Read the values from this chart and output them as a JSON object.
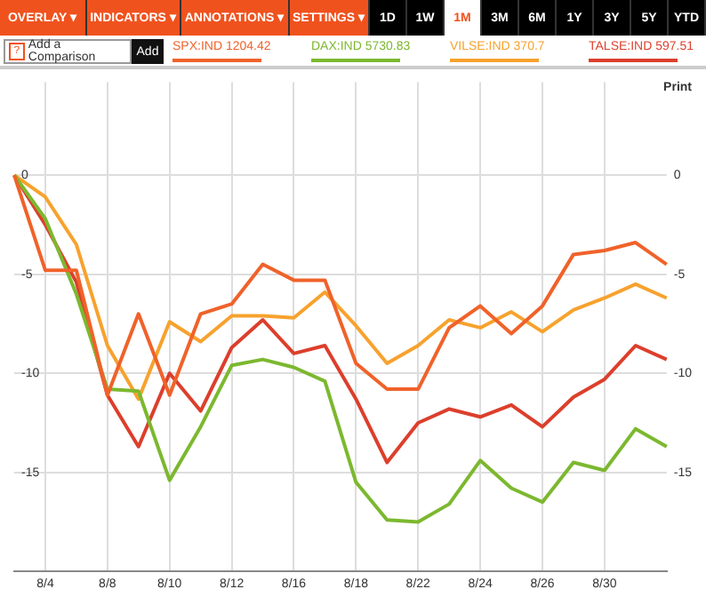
{
  "chart_data": {
    "type": "line",
    "categories": [
      null,
      "8/4",
      null,
      "8/8",
      null,
      "8/10",
      null,
      "8/12",
      null,
      "8/16",
      null,
      "8/18",
      null,
      "8/22",
      null,
      "8/24",
      null,
      "8/26",
      null,
      "8/30",
      null,
      null
    ],
    "series": [
      {
        "name": "SPX:IND 1204.42",
        "color": "#f0622a",
        "values": [
          0,
          -4.8,
          -4.8,
          -11.1,
          -7.0,
          -11.1,
          -7.0,
          -6.5,
          -4.5,
          -5.3,
          -5.3,
          -9.5,
          -10.8,
          -10.8,
          -7.7,
          -6.6,
          -8.0,
          -6.6,
          -4.0,
          -3.8,
          -3.4,
          -4.5
        ]
      },
      {
        "name": "DAX:IND 5730.83",
        "color": "#7cb82f",
        "values": [
          0,
          -2.2,
          -6.0,
          -10.8,
          -10.9,
          -15.4,
          -12.7,
          -9.6,
          -9.3,
          -9.7,
          -10.4,
          -15.5,
          -17.4,
          -17.5,
          -16.6,
          -14.4,
          -15.8,
          -16.5,
          -14.5,
          -14.9,
          -12.8,
          -13.7
        ]
      },
      {
        "name": "VILSE:IND 370.7",
        "color": "#f7a22e",
        "values": [
          0,
          -1.1,
          -3.5,
          -8.6,
          -11.3,
          -7.4,
          -8.4,
          -7.1,
          -7.1,
          -7.2,
          -5.9,
          -7.6,
          -9.5,
          -8.6,
          -7.3,
          -7.7,
          -6.9,
          -7.9,
          -6.8,
          -6.2,
          -5.5,
          -6.2
        ]
      },
      {
        "name": "TALSE:IND 597.51",
        "color": "#dc3f2c",
        "values": [
          0,
          -2.5,
          -5.4,
          -11.1,
          -13.7,
          -10.0,
          -11.9,
          -8.7,
          -7.3,
          -9.0,
          -8.6,
          -11.3,
          -14.5,
          -12.5,
          -11.8,
          -12.2,
          -11.6,
          -12.7,
          -11.2,
          -10.3,
          -8.6,
          -9.3
        ]
      }
    ],
    "ylim": [
      -20,
      4.7
    ],
    "yticks": [
      0,
      -5,
      -10,
      -15
    ],
    "y2lim": [
      -20,
      4.7
    ],
    "y2ticks": [
      0,
      -5,
      -10,
      -15
    ],
    "grid": true,
    "legend": "top",
    "marker": "none",
    "line_style": "solid",
    "annotations": [
      "OVERLAY ▾",
      "INDICATORS ▾",
      "ANNOTATIONS ▾",
      "SETTINGS ▾",
      "1D",
      "1W",
      "1M",
      "3M",
      "6M",
      "1Y",
      "3Y",
      "5Y",
      "YTD",
      "Add a Comparison",
      "Add",
      "Print",
      "?"
    ]
  }
}
